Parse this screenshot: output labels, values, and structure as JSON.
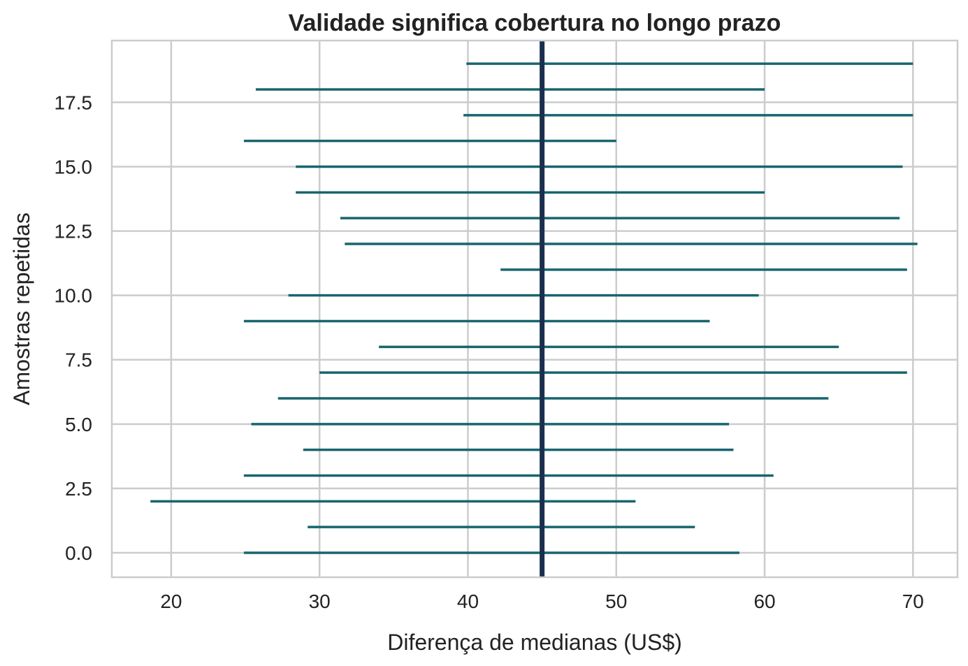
{
  "chart_data": {
    "type": "interval",
    "title": "Validade significa cobertura no longo prazo",
    "xlabel": "Diferença de medianas (US$)",
    "ylabel": "Amostras repetidas",
    "xlim": [
      16,
      73
    ],
    "ylim": [
      -0.95,
      19.9
    ],
    "xticks": [
      20,
      30,
      40,
      50,
      60,
      70
    ],
    "xtick_labels": [
      "20",
      "30",
      "40",
      "50",
      "60",
      "70"
    ],
    "yticks": [
      0,
      2.5,
      5,
      7.5,
      10,
      12.5,
      15,
      17.5
    ],
    "ytick_labels": [
      "0.0",
      "2.5",
      "5.0",
      "7.5",
      "10.0",
      "12.5",
      "15.0",
      "17.5"
    ],
    "grid": true,
    "reference_line": {
      "x": 45,
      "color": "#1b2f4e"
    },
    "interval_color": "#17656f",
    "intervals": [
      {
        "sample": 0,
        "low": 24.9,
        "high": 58.3
      },
      {
        "sample": 1,
        "low": 29.2,
        "high": 55.3
      },
      {
        "sample": 2,
        "low": 18.6,
        "high": 51.3
      },
      {
        "sample": 3,
        "low": 24.9,
        "high": 60.6
      },
      {
        "sample": 4,
        "low": 28.9,
        "high": 57.9
      },
      {
        "sample": 5,
        "low": 25.4,
        "high": 57.6
      },
      {
        "sample": 6,
        "low": 27.2,
        "high": 64.3
      },
      {
        "sample": 7,
        "low": 30.0,
        "high": 69.6
      },
      {
        "sample": 8,
        "low": 34.0,
        "high": 65.0
      },
      {
        "sample": 9,
        "low": 24.9,
        "high": 56.3
      },
      {
        "sample": 10,
        "low": 27.9,
        "high": 59.6
      },
      {
        "sample": 11,
        "low": 42.2,
        "high": 69.6
      },
      {
        "sample": 12,
        "low": 31.7,
        "high": 70.3
      },
      {
        "sample": 13,
        "low": 31.4,
        "high": 69.1
      },
      {
        "sample": 14,
        "low": 28.4,
        "high": 60.0
      },
      {
        "sample": 15,
        "low": 28.4,
        "high": 69.3
      },
      {
        "sample": 16,
        "low": 24.9,
        "high": 50.0
      },
      {
        "sample": 17,
        "low": 39.7,
        "high": 70.0
      },
      {
        "sample": 18,
        "low": 25.7,
        "high": 60.0
      },
      {
        "sample": 19,
        "low": 39.9,
        "high": 70.0
      }
    ]
  }
}
